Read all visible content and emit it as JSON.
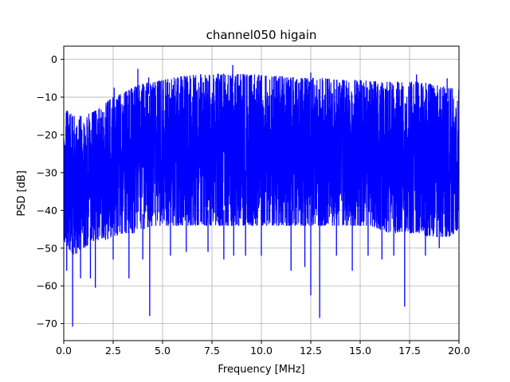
{
  "chart_data": {
    "type": "line",
    "title": "channel050 higain",
    "xlabel": "Frequency [MHz]",
    "ylabel": "PSD [dB]",
    "xlim": [
      0,
      20
    ],
    "ylim": [
      -74.5,
      3.5
    ],
    "xticks": [
      0,
      2.5,
      5,
      7.5,
      10,
      12.5,
      15,
      17.5,
      20
    ],
    "xtick_labels": [
      "0.0",
      "2.5",
      "5.0",
      "7.5",
      "10.0",
      "12.5",
      "15.0",
      "17.5",
      "20.0"
    ],
    "yticks": [
      0,
      -10,
      -20,
      -30,
      -40,
      -50,
      -60,
      -70
    ],
    "ytick_labels": [
      "0",
      "−10",
      "−20",
      "−30",
      "−40",
      "−50",
      "−60",
      "−70"
    ],
    "grid": true,
    "series": [
      {
        "color": "#0000ff",
        "description": "dense noisy PSD trace; upper envelope and lower envelope estimated from plot",
        "x": [
          0,
          0.5,
          1,
          1.5,
          2,
          2.5,
          3,
          3.5,
          4,
          4.5,
          5,
          5.5,
          6,
          6.5,
          7,
          7.5,
          8,
          8.5,
          9,
          9.5,
          10,
          10.5,
          11,
          11.5,
          12,
          12.5,
          13,
          13.5,
          14,
          14.5,
          15,
          15.5,
          16,
          16.5,
          17,
          17.5,
          18,
          18.5,
          19,
          19.5,
          20
        ],
        "upper": [
          -13,
          -15,
          -15,
          -14,
          -12,
          -10,
          -9,
          -7.5,
          -6.5,
          -6,
          -5.5,
          -5,
          -4.5,
          -4.2,
          -4,
          -4,
          -3.8,
          -4,
          -4,
          -4,
          -4.2,
          -4.5,
          -4.5,
          -4.8,
          -5,
          -5,
          -5,
          -5.2,
          -5.5,
          -5.5,
          -5.5,
          -5.8,
          -6,
          -6,
          -6,
          -6,
          -6,
          -6.5,
          -7,
          -7.5,
          -8
        ],
        "lower": [
          -48,
          -52,
          -50,
          -48,
          -48,
          -47,
          -46,
          -46,
          -45,
          -44,
          -44,
          -44,
          -44,
          -44,
          -44,
          -44,
          -44,
          -44,
          -44,
          -44,
          -44,
          -44,
          -44,
          -44,
          -44,
          -44,
          -44,
          -44,
          -44,
          -44,
          -44,
          -44,
          -45,
          -46,
          -46,
          -46,
          -46,
          -47,
          -47,
          -47,
          -45
        ],
        "spikes_up": [
          [
            2.55,
            -7.5
          ],
          [
            3.75,
            -2.5
          ],
          [
            4.3,
            -4.8
          ],
          [
            8.55,
            -1.5
          ],
          [
            12.5,
            -3.5
          ],
          [
            17.85,
            -4
          ],
          [
            19.4,
            -5
          ]
        ],
        "spikes_down": [
          [
            0.15,
            -56
          ],
          [
            0.45,
            -70.8
          ],
          [
            0.85,
            -58
          ],
          [
            1.35,
            -58
          ],
          [
            1.6,
            -60.5
          ],
          [
            2.5,
            -53
          ],
          [
            3.3,
            -58
          ],
          [
            4.0,
            -53
          ],
          [
            4.35,
            -68
          ],
          [
            5.4,
            -52
          ],
          [
            6.2,
            -51
          ],
          [
            7.3,
            -51
          ],
          [
            8.1,
            -53
          ],
          [
            8.6,
            -52
          ],
          [
            9.2,
            -52
          ],
          [
            10.0,
            -52
          ],
          [
            11.5,
            -56
          ],
          [
            12.2,
            -55
          ],
          [
            12.5,
            -62.5
          ],
          [
            12.95,
            -68.5
          ],
          [
            13.8,
            -52
          ],
          [
            14.6,
            -56
          ],
          [
            15.4,
            -52
          ],
          [
            16.1,
            -53
          ],
          [
            16.7,
            -52
          ],
          [
            17.25,
            -65.5
          ],
          [
            18.3,
            -52
          ],
          [
            19.0,
            -50
          ]
        ]
      }
    ]
  }
}
